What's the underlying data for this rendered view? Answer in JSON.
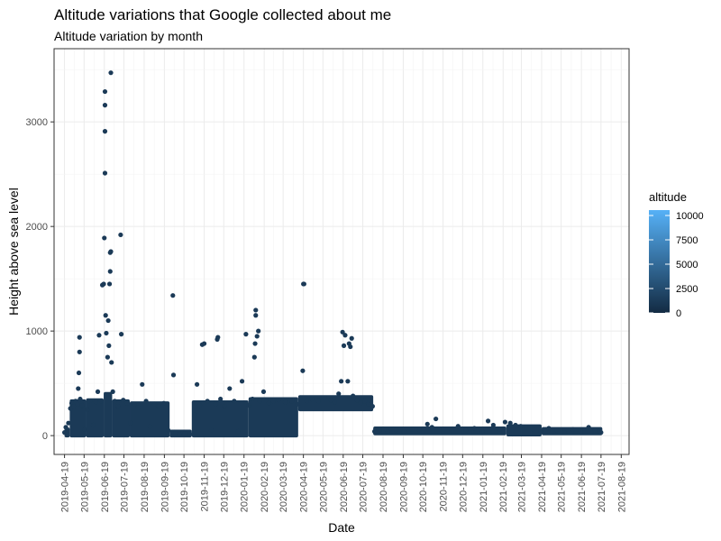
{
  "chart_data": {
    "type": "scatter",
    "title": "Altitude variations that Google collected about me",
    "subtitle": "Altitude variation by month",
    "xlabel": "Date",
    "ylabel": "Height above sea level",
    "x_ticks": [
      "2019-04-19",
      "2019-05-19",
      "2019-06-19",
      "2019-07-19",
      "2019-08-19",
      "2019-09-19",
      "2019-10-19",
      "2019-11-19",
      "2019-12-19",
      "2020-01-19",
      "2020-02-19",
      "2020-03-19",
      "2020-04-19",
      "2020-05-19",
      "2020-06-19",
      "2020-07-19",
      "2020-08-19",
      "2020-09-19",
      "2020-10-19",
      "2020-11-19",
      "2020-12-19",
      "2021-01-19",
      "2021-02-19",
      "2021-03-19",
      "2021-04-19",
      "2021-05-19",
      "2021-06-19",
      "2021-07-19",
      "2021-08-19"
    ],
    "xlim": [
      "2019-04-03",
      "2021-08-31"
    ],
    "y_ticks": [
      0,
      1000,
      2000,
      3000
    ],
    "ylim": [
      -180,
      3700
    ],
    "grid": true,
    "legend": {
      "title": "altitude",
      "position": "right",
      "type": "colorbar",
      "range": [
        0,
        10000
      ],
      "ticks": [
        0,
        2500,
        5000,
        7500,
        10000
      ],
      "color_low": "#132B43",
      "color_high": "#56B1F7"
    },
    "point_color": "#1b3a57",
    "series": [
      {
        "points": [
          [
            "2019-04-19",
            30
          ],
          [
            "2019-04-21",
            80
          ],
          [
            "2019-04-23",
            15
          ],
          [
            "2019-04-25",
            120
          ],
          [
            "2019-04-28",
            260
          ],
          [
            "2019-04-30",
            310
          ],
          [
            "2019-05-03",
            280
          ],
          [
            "2019-05-06",
            330
          ],
          [
            "2019-05-09",
            300
          ],
          [
            "2019-05-10",
            450
          ],
          [
            "2019-05-11",
            600
          ],
          [
            "2019-05-12",
            800
          ],
          [
            "2019-05-12",
            940
          ],
          [
            "2019-05-13",
            350
          ],
          [
            "2019-05-16",
            290
          ],
          [
            "2019-05-20",
            60
          ],
          [
            "2019-05-24",
            250
          ],
          [
            "2019-05-28",
            330
          ],
          [
            "2019-06-02",
            100
          ],
          [
            "2019-06-06",
            320
          ],
          [
            "2019-06-09",
            420
          ],
          [
            "2019-06-11",
            960
          ],
          [
            "2019-06-14",
            330
          ],
          [
            "2019-06-16",
            1440
          ],
          [
            "2019-06-18",
            1450
          ],
          [
            "2019-06-19",
            1890
          ],
          [
            "2019-06-20",
            3290
          ],
          [
            "2019-06-20",
            3160
          ],
          [
            "2019-06-20",
            2910
          ],
          [
            "2019-06-20",
            2510
          ],
          [
            "2019-06-21",
            1150
          ],
          [
            "2019-06-22",
            980
          ],
          [
            "2019-06-24",
            750
          ],
          [
            "2019-06-25",
            1100
          ],
          [
            "2019-06-26",
            860
          ],
          [
            "2019-06-27",
            1450
          ],
          [
            "2019-06-28",
            1750
          ],
          [
            "2019-06-28",
            1570
          ],
          [
            "2019-06-29",
            3470
          ],
          [
            "2019-06-29",
            1760
          ],
          [
            "2019-06-30",
            700
          ],
          [
            "2019-07-02",
            420
          ],
          [
            "2019-07-05",
            330
          ],
          [
            "2019-07-10",
            280
          ],
          [
            "2019-07-14",
            1920
          ],
          [
            "2019-07-15",
            970
          ],
          [
            "2019-07-18",
            340
          ],
          [
            "2019-07-24",
            310
          ],
          [
            "2019-07-29",
            120
          ],
          [
            "2019-08-04",
            300
          ],
          [
            "2019-08-10",
            270
          ],
          [
            "2019-08-16",
            490
          ],
          [
            "2019-08-22",
            330
          ],
          [
            "2019-08-28",
            90
          ],
          [
            "2019-09-04",
            300
          ],
          [
            "2019-09-10",
            280
          ],
          [
            "2019-09-18",
            310
          ],
          [
            "2019-09-25",
            50
          ],
          [
            "2019-10-02",
            1340
          ],
          [
            "2019-10-03",
            580
          ],
          [
            "2019-10-06",
            30
          ],
          [
            "2019-10-12",
            10
          ],
          [
            "2019-10-20",
            20
          ],
          [
            "2019-10-28",
            15
          ],
          [
            "2019-11-04",
            200
          ],
          [
            "2019-11-08",
            490
          ],
          [
            "2019-11-12",
            290
          ],
          [
            "2019-11-16",
            870
          ],
          [
            "2019-11-19",
            880
          ],
          [
            "2019-11-24",
            330
          ],
          [
            "2019-11-30",
            50
          ],
          [
            "2019-12-06",
            300
          ],
          [
            "2019-12-09",
            920
          ],
          [
            "2019-12-10",
            940
          ],
          [
            "2019-12-14",
            350
          ],
          [
            "2019-12-20",
            280
          ],
          [
            "2019-12-28",
            450
          ],
          [
            "2020-01-04",
            330
          ],
          [
            "2020-01-10",
            40
          ],
          [
            "2020-01-16",
            520
          ],
          [
            "2020-01-22",
            970
          ],
          [
            "2020-01-26",
            290
          ],
          [
            "2020-02-01",
            350
          ],
          [
            "2020-02-04",
            750
          ],
          [
            "2020-02-05",
            880
          ],
          [
            "2020-02-06",
            1150
          ],
          [
            "2020-02-06",
            1200
          ],
          [
            "2020-02-08",
            950
          ],
          [
            "2020-02-10",
            1000
          ],
          [
            "2020-02-12",
            330
          ],
          [
            "2020-02-18",
            420
          ],
          [
            "2020-02-26",
            310
          ],
          [
            "2020-03-04",
            330
          ],
          [
            "2020-03-12",
            340
          ],
          [
            "2020-03-22",
            320
          ],
          [
            "2020-04-01",
            330
          ],
          [
            "2020-04-10",
            300
          ],
          [
            "2020-04-18",
            620
          ],
          [
            "2020-04-19",
            1450
          ],
          [
            "2020-04-20",
            1450
          ],
          [
            "2020-04-24",
            330
          ],
          [
            "2020-05-02",
            350
          ],
          [
            "2020-05-12",
            330
          ],
          [
            "2020-05-22",
            360
          ],
          [
            "2020-05-31",
            340
          ],
          [
            "2020-06-06",
            320
          ],
          [
            "2020-06-12",
            400
          ],
          [
            "2020-06-16",
            520
          ],
          [
            "2020-06-18",
            990
          ],
          [
            "2020-06-20",
            860
          ],
          [
            "2020-06-22",
            960
          ],
          [
            "2020-06-26",
            520
          ],
          [
            "2020-06-28",
            880
          ],
          [
            "2020-06-30",
            850
          ],
          [
            "2020-07-02",
            930
          ],
          [
            "2020-07-04",
            380
          ],
          [
            "2020-07-10",
            340
          ],
          [
            "2020-07-16",
            310
          ],
          [
            "2020-07-22",
            330
          ],
          [
            "2020-07-28",
            300
          ],
          [
            "2020-08-03",
            280
          ],
          [
            "2020-08-06",
            40
          ],
          [
            "2020-08-14",
            50
          ],
          [
            "2020-08-26",
            40
          ],
          [
            "2020-09-08",
            55
          ],
          [
            "2020-09-20",
            40
          ],
          [
            "2020-10-02",
            60
          ],
          [
            "2020-10-14",
            50
          ],
          [
            "2020-10-26",
            110
          ],
          [
            "2020-11-02",
            80
          ],
          [
            "2020-11-08",
            160
          ],
          [
            "2020-11-20",
            60
          ],
          [
            "2020-12-02",
            50
          ],
          [
            "2020-12-12",
            90
          ],
          [
            "2020-12-24",
            50
          ],
          [
            "2021-01-06",
            70
          ],
          [
            "2021-01-18",
            40
          ],
          [
            "2021-01-27",
            140
          ],
          [
            "2021-02-04",
            100
          ],
          [
            "2021-02-14",
            60
          ],
          [
            "2021-02-22",
            130
          ],
          [
            "2021-03-02",
            120
          ],
          [
            "2021-03-10",
            100
          ],
          [
            "2021-03-18",
            90
          ],
          [
            "2021-03-26",
            80
          ],
          [
            "2021-04-06",
            60
          ],
          [
            "2021-04-18",
            40
          ],
          [
            "2021-04-30",
            70
          ],
          [
            "2021-05-12",
            50
          ],
          [
            "2021-05-24",
            30
          ],
          [
            "2021-06-06",
            60
          ],
          [
            "2021-06-18",
            40
          ],
          [
            "2021-06-30",
            80
          ],
          [
            "2021-07-10",
            50
          ],
          [
            "2021-07-16",
            40
          ],
          [
            "2021-07-19",
            30
          ]
        ],
        "bands": [
          [
            "2019-04-19",
            "2019-04-27",
            0,
            60
          ],
          [
            "2019-04-27",
            "2019-05-22",
            0,
            330
          ],
          [
            "2019-05-22",
            "2019-06-18",
            0,
            340
          ],
          [
            "2019-06-18",
            "2019-07-01",
            0,
            400
          ],
          [
            "2019-07-01",
            "2019-07-28",
            0,
            330
          ],
          [
            "2019-07-28",
            "2019-09-27",
            0,
            310
          ],
          [
            "2019-09-27",
            "2019-10-31",
            0,
            40
          ],
          [
            "2019-10-31",
            "2020-01-26",
            0,
            320
          ],
          [
            "2020-01-26",
            "2020-04-11",
            0,
            350
          ],
          [
            "2020-04-11",
            "2020-08-04",
            250,
            370
          ],
          [
            "2020-08-04",
            "2021-02-24",
            20,
            70
          ],
          [
            "2021-02-24",
            "2021-04-19",
            10,
            90
          ],
          [
            "2021-04-19",
            "2021-07-21",
            20,
            65
          ]
        ]
      }
    ]
  }
}
